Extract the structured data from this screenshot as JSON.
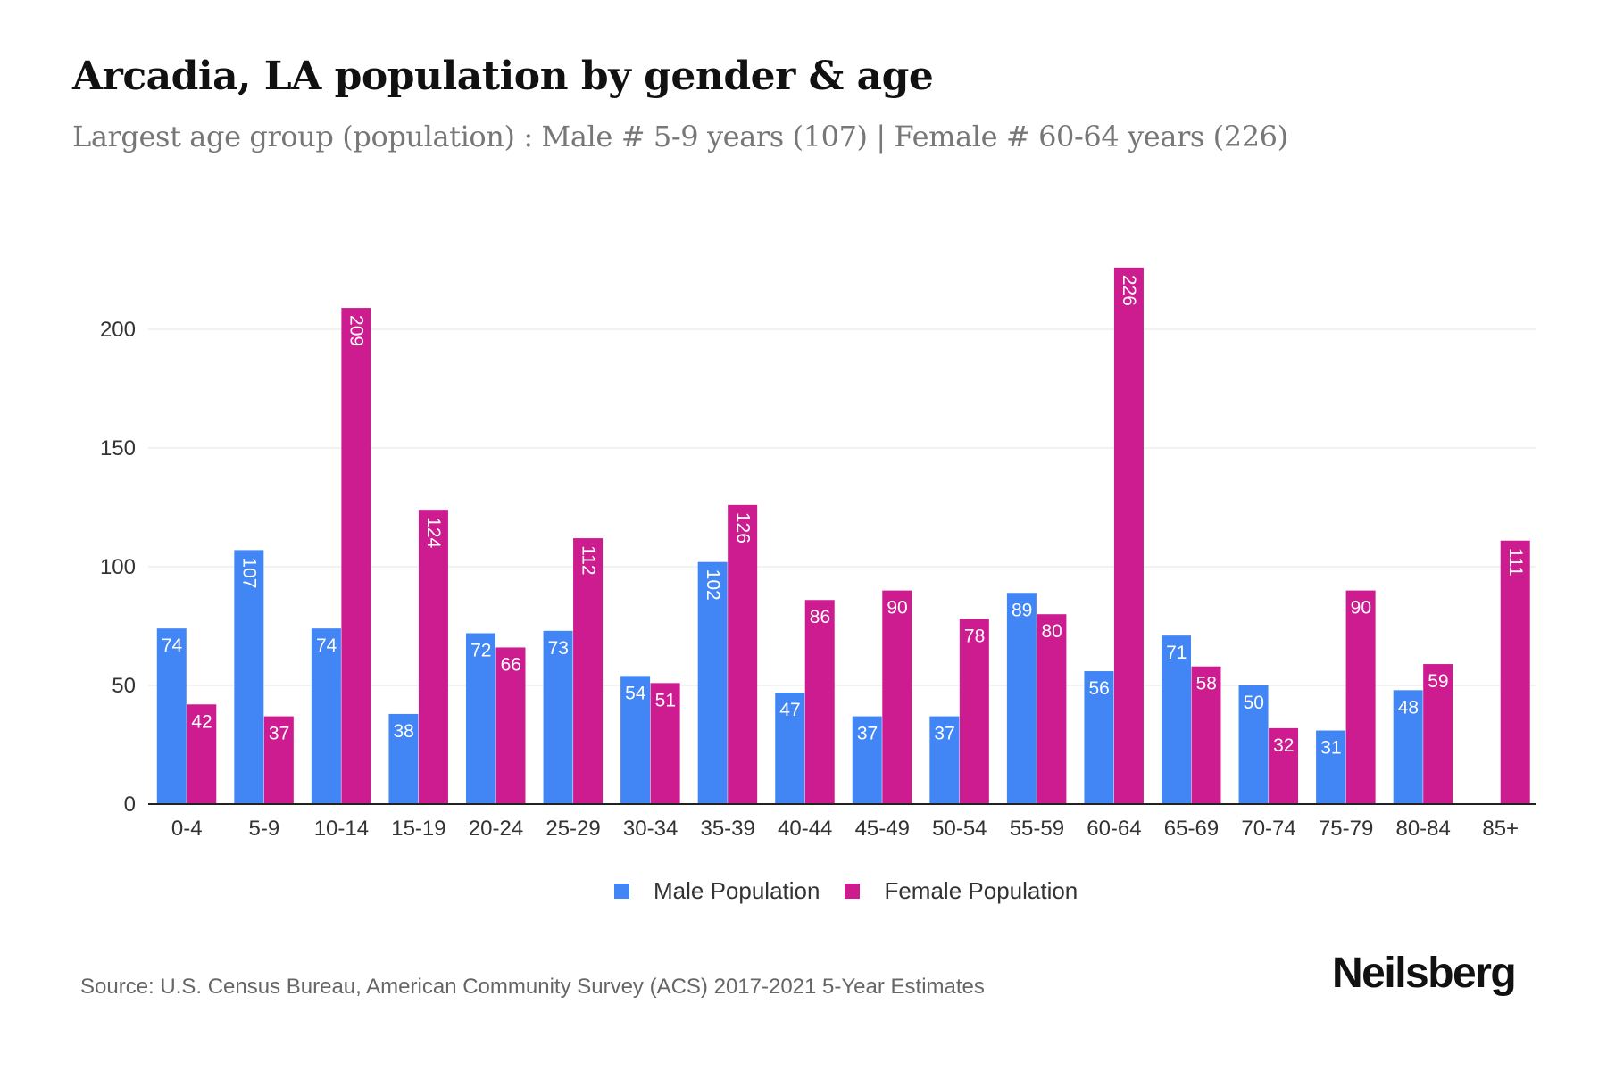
{
  "header": {
    "title": "Arcadia, LA population by gender & age",
    "subtitle": "Largest age group (population) : Male # 5-9 years (107) | Female # 60-64 years (226)"
  },
  "footer": {
    "source": "Source: U.S. Census Bureau, American Community Survey (ACS) 2017-2021 5-Year Estimates",
    "brand": "Neilsberg"
  },
  "colors": {
    "male": "#4285F4",
    "female": "#CC1C8F",
    "grid": "#EEEEEE",
    "axis": "#222222"
  },
  "chart_data": {
    "type": "bar",
    "title": "Arcadia, LA population by gender & age",
    "subtitle": "Largest age group (population) : Male # 5-9 years (107) | Female # 60-64 years (226)",
    "xlabel": "",
    "ylabel": "",
    "ylim": [
      0,
      240
    ],
    "yticks": [
      0,
      50,
      100,
      150,
      200
    ],
    "grid": true,
    "legend_position": "bottom-center",
    "categories": [
      "0-4",
      "5-9",
      "10-14",
      "15-19",
      "20-24",
      "25-29",
      "30-34",
      "35-39",
      "40-44",
      "45-49",
      "50-54",
      "55-59",
      "60-64",
      "65-69",
      "70-74",
      "75-79",
      "80-84",
      "85+"
    ],
    "series": [
      {
        "name": "Male Population",
        "values": [
          74,
          107,
          74,
          38,
          72,
          73,
          54,
          102,
          47,
          37,
          37,
          89,
          56,
          71,
          50,
          31,
          48,
          0
        ]
      },
      {
        "name": "Female Population",
        "values": [
          42,
          37,
          209,
          124,
          66,
          112,
          51,
          126,
          86,
          90,
          78,
          80,
          226,
          58,
          32,
          90,
          59,
          111
        ]
      }
    ]
  }
}
